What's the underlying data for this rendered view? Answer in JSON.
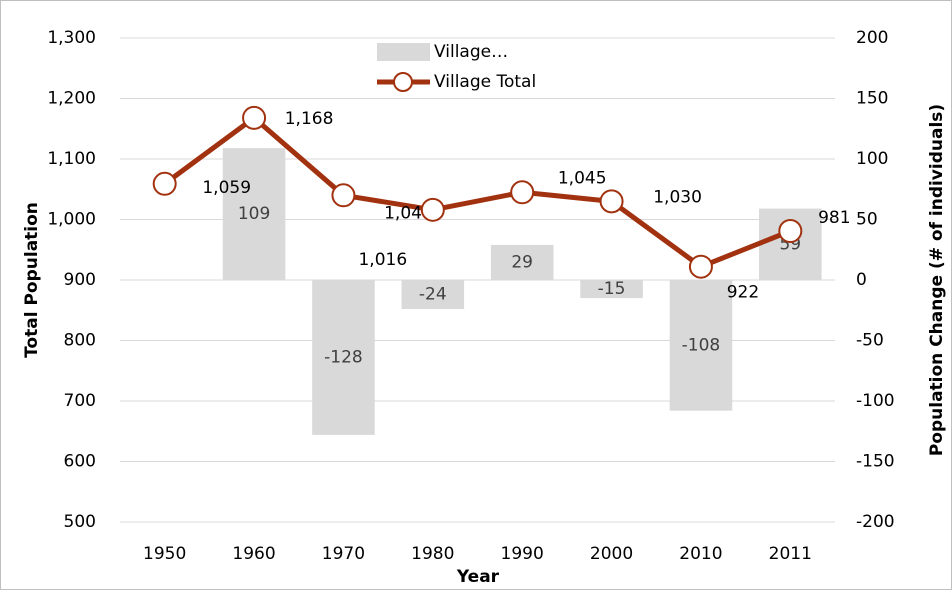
{
  "chart_data": {
    "type": "bar+line",
    "categories": [
      "1950",
      "1960",
      "1970",
      "1980",
      "1990",
      "2000",
      "2010",
      "2011"
    ],
    "series": [
      {
        "name": "Village…",
        "type": "bar",
        "axis": "y2",
        "color": "#d9d9d9",
        "values": [
          null,
          109,
          -128,
          -24,
          29,
          -15,
          -108,
          59
        ]
      },
      {
        "name": "Village Total",
        "type": "line",
        "axis": "y",
        "color": "#a2320f",
        "values": [
          1059,
          1168,
          1040,
          1016,
          1045,
          1030,
          922,
          981
        ],
        "value_labels": [
          "1,059",
          "1,168",
          "1,040",
          "1,016",
          "1,045",
          "1,030",
          "922",
          "981"
        ]
      }
    ],
    "xlabel": "Year",
    "ylabel": "Total Population",
    "y2label": "Population Change (# of individuals)",
    "ylim": [
      500,
      1300
    ],
    "yticks": [
      500,
      600,
      700,
      800,
      900,
      {
        "value": 1000,
        "label": "1,000"
      },
      {
        "value": 1100,
        "label": "1,100"
      },
      {
        "value": 1200,
        "label": "1,200"
      },
      {
        "value": 1300,
        "label": "1,300"
      }
    ],
    "y2lim": [
      -200,
      200
    ],
    "y2ticks": [
      -200,
      -150,
      -100,
      -50,
      0,
      50,
      100,
      150,
      200
    ],
    "grid": true,
    "legend": "top"
  }
}
